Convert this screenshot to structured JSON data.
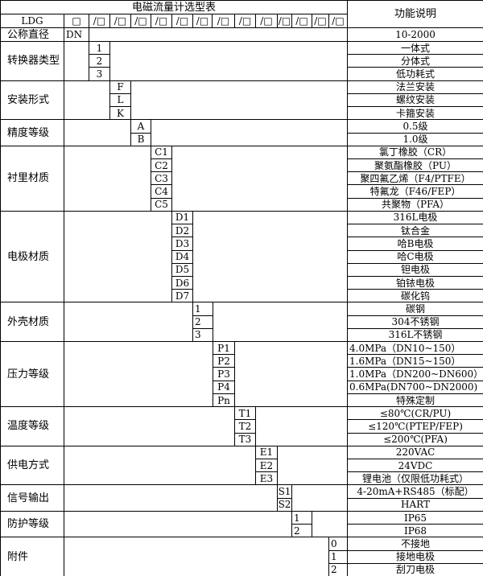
{
  "table": {
    "title": "电磁流量计选型表",
    "function_header": "功能说明",
    "model_prefix": "LDG",
    "first_slot": "□",
    "slots": [
      "/□",
      "/□",
      "/□",
      "/□",
      "/□",
      "/□",
      "/□",
      "/□",
      "/□",
      "/□",
      "/□",
      "/□",
      "/□"
    ],
    "nominal_diameter": {
      "label": "公称直径",
      "code": "DN",
      "desc": "10-2000"
    },
    "groups": [
      {
        "label": "转换器类型",
        "rows": [
          {
            "code": "1",
            "desc": "一体式"
          },
          {
            "code": "2",
            "desc": "分体式"
          },
          {
            "code": "3",
            "desc": "低功耗式"
          }
        ]
      },
      {
        "label": "安装形式",
        "rows": [
          {
            "code": "F",
            "desc": "法兰安装"
          },
          {
            "code": "L",
            "desc": "螺纹安装"
          },
          {
            "code": "K",
            "desc": "卡箍安装"
          }
        ]
      },
      {
        "label": "精度等级",
        "rows": [
          {
            "code": "A",
            "desc": "0.5级"
          },
          {
            "code": "B",
            "desc": "1.0级"
          }
        ]
      },
      {
        "label": "衬里材质",
        "rows": [
          {
            "code": "C1",
            "desc": "氯丁橡胶（CR）"
          },
          {
            "code": "C2",
            "desc": "聚氨酯橡胶（PU）"
          },
          {
            "code": "C3",
            "desc": "聚四氟乙烯（F4/PTFE）"
          },
          {
            "code": "C4",
            "desc": "特氟龙（F46/FEP）"
          },
          {
            "code": "C5",
            "desc": "共聚物（PFA）"
          }
        ]
      },
      {
        "label": "电极材质",
        "rows": [
          {
            "code": "D1",
            "desc": "316L电极"
          },
          {
            "code": "D2",
            "desc": "钛合金"
          },
          {
            "code": "D3",
            "desc": "哈B电极"
          },
          {
            "code": "D4",
            "desc": "哈C电极"
          },
          {
            "code": "D5",
            "desc": "钽电极"
          },
          {
            "code": "D6",
            "desc": "铂铱电极"
          },
          {
            "code": "D7",
            "desc": "碳化钨"
          }
        ]
      },
      {
        "label": "外壳材质",
        "rows": [
          {
            "code": "1",
            "desc": "碳钢"
          },
          {
            "code": "2",
            "desc": "304不锈钢"
          },
          {
            "code": "3",
            "desc": "316L不锈钢"
          }
        ]
      },
      {
        "label": "压力等级",
        "rows": [
          {
            "code": "P1",
            "desc": "4.0MPa（DN10~150）"
          },
          {
            "code": "P2",
            "desc": "1.6MPa（DN15~150）"
          },
          {
            "code": "P3",
            "desc": "1.0MPa（DN200~DN600）"
          },
          {
            "code": "P4",
            "desc": "0.6MPa(DN700~DN2000)"
          },
          {
            "code": "Pn",
            "desc": "特殊定制"
          }
        ]
      },
      {
        "label": "温度等级",
        "rows": [
          {
            "code": "T1",
            "desc": "≤80℃(CR/PU)"
          },
          {
            "code": "T2",
            "desc": "≤120℃(PTEP/FEP)"
          },
          {
            "code": "T3",
            "desc": "≤200℃(PFA)"
          }
        ]
      },
      {
        "label": "供电方式",
        "rows": [
          {
            "code": "E1",
            "desc": "220VAC"
          },
          {
            "code": "E2",
            "desc": "24VDC"
          },
          {
            "code": "E3",
            "desc": "锂电池（仅限低功耗式）"
          }
        ]
      },
      {
        "label": "信号输出",
        "rows": [
          {
            "code": "S1",
            "desc": "4-20mA+RS485（标配）"
          },
          {
            "code": "S2",
            "desc": "HART"
          }
        ]
      },
      {
        "label": "防护等级",
        "rows": [
          {
            "code": "1",
            "desc": "IP65"
          },
          {
            "code": "2",
            "desc": "IP68"
          }
        ]
      },
      {
        "label": "附件",
        "rows": [
          {
            "code": "0",
            "desc": "不接地"
          },
          {
            "code": "1",
            "desc": "接地电极"
          },
          {
            "code": "2",
            "desc": "刮刀电极"
          }
        ]
      }
    ]
  }
}
